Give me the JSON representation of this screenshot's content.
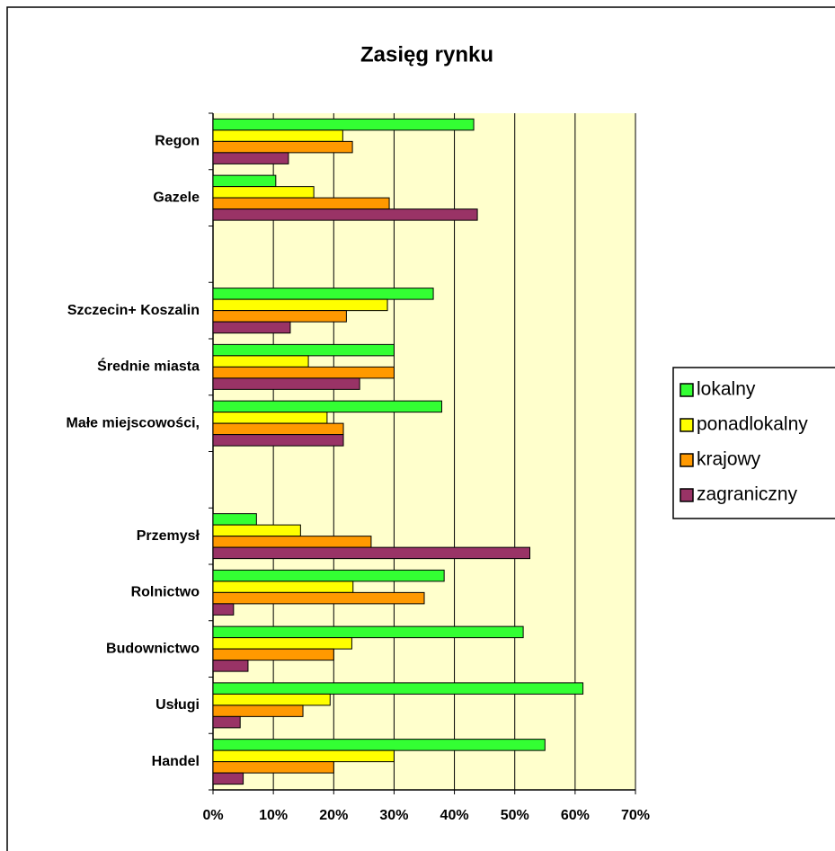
{
  "chart_data": {
    "type": "bar",
    "orientation": "horizontal",
    "title": "Zasięg rynku",
    "categories": [
      "Regon",
      "Gazele",
      null,
      "Szczecin+ Koszalin",
      "Średnie miasta",
      "Małe miejscowości,",
      null,
      "Przemysł",
      "Rolnictwo",
      "Budownictwo",
      "Usługi",
      "Handel"
    ],
    "series": [
      {
        "name": "lokalny",
        "color": "#33ff33",
        "values": [
          43.2,
          10.4,
          null,
          36.5,
          30,
          37.9,
          null,
          7.2,
          38.3,
          51.4,
          61.3,
          55
        ]
      },
      {
        "name": "ponadlokalny",
        "color": "#ffff00",
        "values": [
          21.5,
          16.7,
          null,
          28.9,
          15.8,
          18.9,
          null,
          14.5,
          23.2,
          23,
          19.4,
          30
        ]
      },
      {
        "name": "krajowy",
        "color": "#ff9900",
        "values": [
          23.1,
          29.2,
          null,
          22.1,
          30,
          21.6,
          null,
          26.2,
          35,
          20,
          14.9,
          20
        ]
      },
      {
        "name": "zagraniczny",
        "color": "#993366",
        "values": [
          12.5,
          43.8,
          null,
          12.8,
          24.3,
          21.6,
          null,
          52.5,
          3.4,
          5.8,
          4.5,
          5
        ]
      }
    ],
    "xlim": [
      0,
      70
    ],
    "xticks": [
      {
        "value": 0,
        "label": "0%"
      },
      {
        "value": 10,
        "label": "10%"
      },
      {
        "value": 20,
        "label": "20%"
      },
      {
        "value": 30,
        "label": "30%"
      },
      {
        "value": 40,
        "label": "40%"
      },
      {
        "value": 50,
        "label": "50%"
      },
      {
        "value": 60,
        "label": "60%"
      },
      {
        "value": 70,
        "label": "70%"
      }
    ],
    "grid": true,
    "legend": "right",
    "plot_background": "#ffffcc"
  }
}
